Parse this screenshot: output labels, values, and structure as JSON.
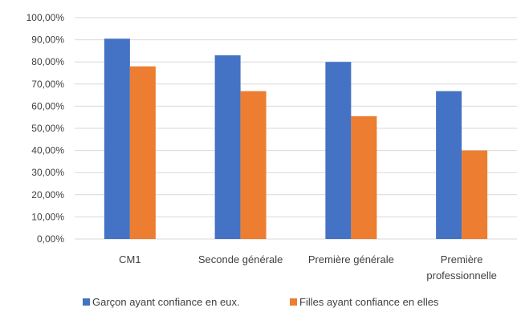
{
  "chart_data": {
    "type": "bar",
    "categories": [
      [
        "CM1"
      ],
      [
        "Seconde générale"
      ],
      [
        "Première générale"
      ],
      [
        "Première",
        "professionnelle"
      ]
    ],
    "series": [
      {
        "name": "Garçon ayant confiance en eux.",
        "color": "#4472c4",
        "values": [
          90.5,
          83.0,
          80.0,
          66.8
        ]
      },
      {
        "name": "Filles ayant confiance en elles",
        "color": "#ed7d31",
        "values": [
          78.0,
          66.8,
          55.5,
          40.0
        ]
      }
    ],
    "yticks": [
      "0,00%",
      "10,00%",
      "20,00%",
      "30,00%",
      "40,00%",
      "50,00%",
      "60,00%",
      "70,00%",
      "80,00%",
      "90,00%",
      "100,00%"
    ],
    "ylim": [
      0,
      100
    ],
    "grid": true,
    "legend_position": "bottom",
    "gridline_color": "#d9d9d9"
  }
}
